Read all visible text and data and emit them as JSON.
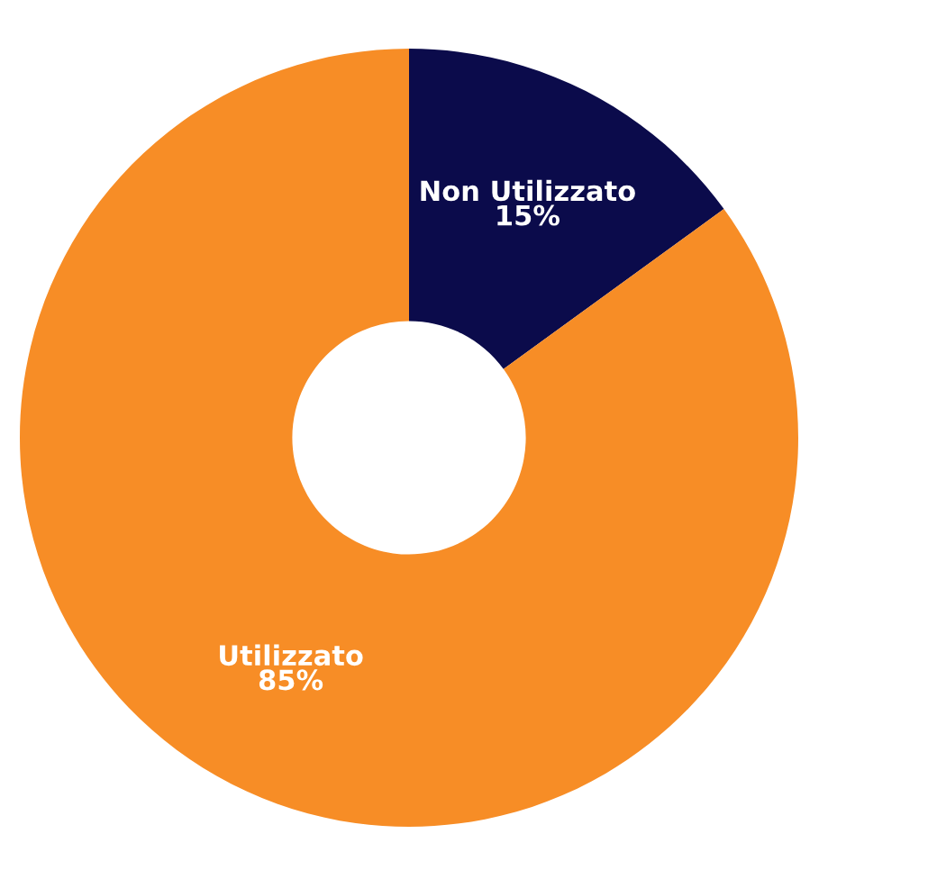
{
  "chart_data": {
    "type": "donut",
    "categories": [
      "Non Utilizzato",
      "Utilizzato"
    ],
    "values": [
      15,
      85
    ],
    "colors": [
      "#0b0b4b",
      "#f78d26"
    ],
    "value_labels": [
      "15%",
      "85%"
    ],
    "legend": false
  }
}
